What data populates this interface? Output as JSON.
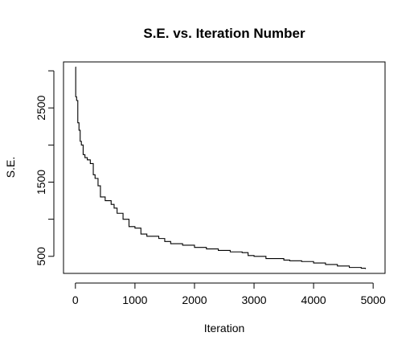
{
  "chart_data": {
    "type": "line",
    "title": "S.E. vs. Iteration Number",
    "xlabel": "Iteration",
    "ylabel": "S.E.",
    "xlim": [
      -200,
      5200
    ],
    "ylim": [
      270,
      3120
    ],
    "xticks": [
      0,
      1000,
      2000,
      3000,
      4000,
      5000
    ],
    "yticks": [
      500,
      1500,
      2500
    ],
    "xtick_labels": [
      "0",
      "1000",
      "2000",
      "3000",
      "4000",
      "5000"
    ],
    "ytick_labels": [
      "500",
      "1500",
      "2500"
    ],
    "grid": false,
    "legend": "none",
    "series": [
      {
        "color": "#000000",
        "x": [
          0,
          5,
          20,
          40,
          60,
          80,
          100,
          130,
          160,
          200,
          250,
          300,
          330,
          380,
          420,
          500,
          600,
          650,
          700,
          800,
          900,
          1000,
          1100,
          1200,
          1400,
          1500,
          1600,
          1800,
          2000,
          2200,
          2400,
          2600,
          2800,
          2900,
          3000,
          3200,
          3500,
          3600,
          3800,
          4000,
          4200,
          4400,
          4600,
          4800,
          4870
        ],
        "y": [
          3050,
          2650,
          2600,
          2300,
          2200,
          2050,
          2000,
          1870,
          1830,
          1800,
          1750,
          1600,
          1550,
          1450,
          1300,
          1250,
          1200,
          1150,
          1080,
          1000,
          900,
          880,
          800,
          770,
          740,
          700,
          670,
          650,
          620,
          600,
          580,
          560,
          550,
          510,
          500,
          470,
          450,
          440,
          430,
          410,
          390,
          370,
          350,
          340,
          330
        ]
      }
    ]
  }
}
